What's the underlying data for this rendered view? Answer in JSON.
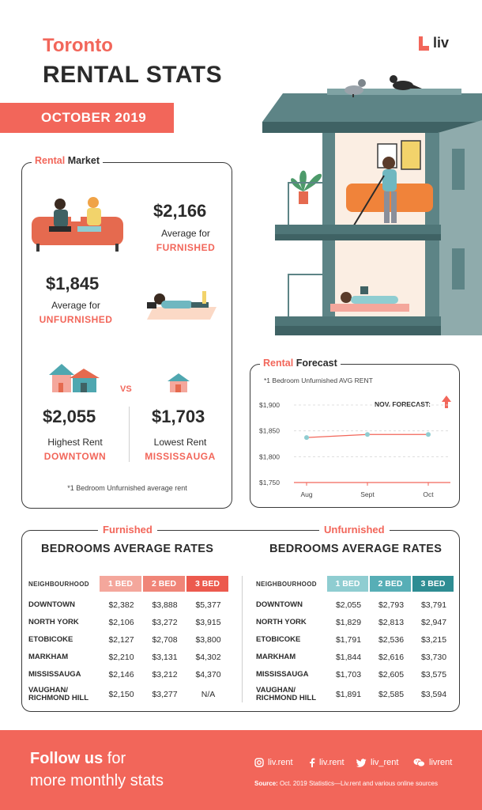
{
  "header": {
    "city": "Toronto",
    "title": "RENTAL STATS",
    "month": "OCTOBER 2019",
    "logo_text": "liv"
  },
  "market": {
    "label_colored": "Rental",
    "label_rest": "Market",
    "furnished_value": "$2,166",
    "furnished_line1": "Average for",
    "furnished_line2": "FURNISHED",
    "unfurnished_value": "$1,845",
    "unfurnished_line1": "Average for",
    "unfurnished_line2": "UNFURNISHED",
    "vs": "VS",
    "highest_value": "$2,055",
    "highest_label": "Highest Rent",
    "highest_area": "DOWNTOWN",
    "lowest_value": "$1,703",
    "lowest_label": "Lowest Rent",
    "lowest_area": "MISSISSAUGA",
    "footnote": "*1 Bedroom Unfurnished average rent"
  },
  "forecast": {
    "label_colored": "Rental",
    "label_rest": "Forecast",
    "note": "*1 Bedroom Unfurnished AVG RENT",
    "nov_label": "NOV. FORECAST:",
    "arrow": "up-arrow-icon"
  },
  "chart_data": {
    "type": "line",
    "title": "",
    "x": [
      "Aug",
      "Sept",
      "Oct"
    ],
    "series": [
      {
        "values": [
          1837,
          1843,
          1843
        ]
      }
    ],
    "y_ticks": [
      "$1,900",
      "$1,850",
      "$1,800",
      "$1,750"
    ],
    "ylim": [
      1750,
      1900
    ],
    "grid": "dashed-horizontal"
  },
  "furnished_table": {
    "label": "Furnished",
    "title": "BEDROOMS AVERAGE RATES",
    "col_header": "NEIGHBOURHOOD",
    "cols": [
      "1 BED",
      "2 BED",
      "3 BED"
    ],
    "col_colors": [
      "#f4a79c",
      "#f08578",
      "#ec5a4e"
    ],
    "rows": [
      {
        "name": "DOWNTOWN",
        "name2": "",
        "v": [
          "$2,382",
          "$3,888",
          "$5,377"
        ]
      },
      {
        "name": "NORTH YORK",
        "name2": "",
        "v": [
          "$2,106",
          "$3,272",
          "$3,915"
        ]
      },
      {
        "name": "ETOBICOKE",
        "name2": "",
        "v": [
          "$2,127",
          "$2,708",
          "$3,800"
        ]
      },
      {
        "name": "MARKHAM",
        "name2": "",
        "v": [
          "$2,210",
          "$3,131",
          "$4,302"
        ]
      },
      {
        "name": "MISSISSAUGA",
        "name2": "",
        "v": [
          "$2,146",
          "$3,212",
          "$4,370"
        ]
      },
      {
        "name": "VAUGHAN/",
        "name2": "RICHMOND HILL",
        "v": [
          "$2,150",
          "$3,277",
          "N/A"
        ]
      }
    ]
  },
  "unfurnished_table": {
    "label": "Unfurnished",
    "title": "BEDROOMS AVERAGE RATES",
    "col_header": "NEIGHBOURHOOD",
    "cols": [
      "1 BED",
      "2 BED",
      "3 BED"
    ],
    "col_colors": [
      "#8fcdd1",
      "#57aeb6",
      "#2f8d93"
    ],
    "rows": [
      {
        "name": "DOWNTOWN",
        "name2": "",
        "v": [
          "$2,055",
          "$2,793",
          "$3,791"
        ]
      },
      {
        "name": "NORTH YORK",
        "name2": "",
        "v": [
          "$1,829",
          "$2,813",
          "$2,947"
        ]
      },
      {
        "name": "ETOBICOKE",
        "name2": "",
        "v": [
          "$1,791",
          "$2,536",
          "$3,215"
        ]
      },
      {
        "name": "MARKHAM",
        "name2": "",
        "v": [
          "$1,844",
          "$2,616",
          "$3,730"
        ]
      },
      {
        "name": "MISSISSAUGA",
        "name2": "",
        "v": [
          "$1,703",
          "$2,605",
          "$3,575"
        ]
      },
      {
        "name": "VAUGHAN/",
        "name2": "RICHMOND HILL",
        "v": [
          "$1,891",
          "$2,585",
          "$3,594"
        ]
      }
    ]
  },
  "footer": {
    "follow_bold": "Follow us",
    "follow_rest": "for",
    "line2": "more monthly stats",
    "social": [
      {
        "icon": "instagram-icon",
        "label": "liv.rent"
      },
      {
        "icon": "facebook-icon",
        "label": "liv.rent"
      },
      {
        "icon": "twitter-icon",
        "label": "liv_rent"
      },
      {
        "icon": "wechat-icon",
        "label": "livrent"
      }
    ],
    "source_bold": "Source:",
    "source_rest": "Oct. 2019 Statistics—Liv.rent and various online sources"
  },
  "colors": {
    "coral": "#f2665a",
    "teal": "#4fa7b0",
    "dark": "#2b2b2b"
  }
}
